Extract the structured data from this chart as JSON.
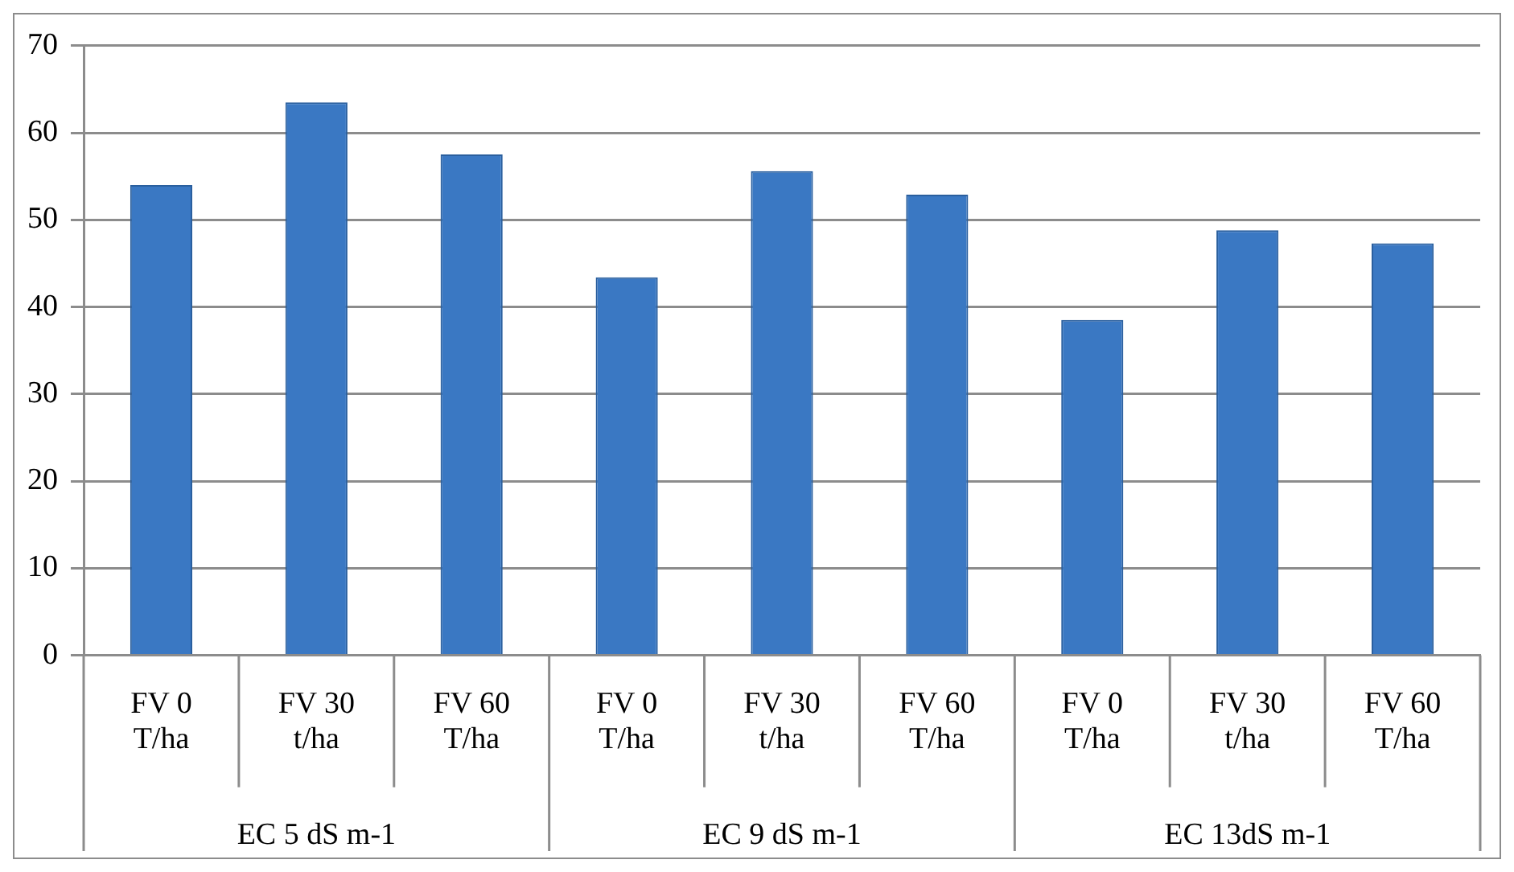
{
  "chart_data": {
    "type": "bar",
    "categories": [
      "FV 0 T/ha",
      "FV 30 t/ha",
      "FV 60 T/ha",
      "FV 0 T/ha",
      "FV 30 t/ha",
      "FV 60 T/ha",
      "FV 0 T/ha",
      "FV 30 t/ha",
      "FV 60 T/ha"
    ],
    "values": [
      54,
      63.5,
      57.5,
      43.4,
      55.6,
      52.9,
      38.5,
      48.8,
      47.3
    ],
    "color": "#3a78c3",
    "ylim": [
      0,
      70
    ],
    "yticks": [
      0,
      10,
      20,
      30,
      40,
      50,
      60,
      70
    ],
    "grid": "y",
    "annotations": [
      "EC 5 dS m-1",
      "EC 9 dS m-1",
      "EC 13dS m-1"
    ]
  }
}
